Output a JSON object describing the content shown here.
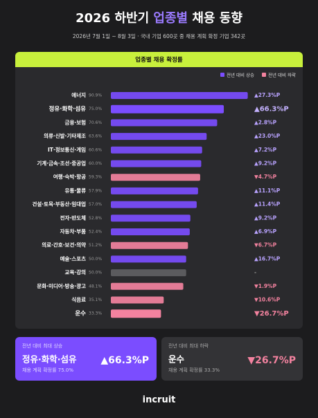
{
  "header": {
    "title": [
      "2026 하반기 ",
      "업종별",
      " 채용 동향"
    ],
    "subtitle": "2026년 7월 1일 ~ 8월 3일 · 국내 기업 600곳 중 채용 계획 확정 기업 342곳"
  },
  "chart_data": {
    "type": "bar",
    "orientation": "horizontal",
    "title": "업종별 채용 확정률",
    "legend": [
      {
        "name": "전년 대비 상승",
        "color": "#7b4dff"
      },
      {
        "name": "전년 대비 하락",
        "color": "#f3829f"
      }
    ],
    "neutral_color": "#5f5f63",
    "categories": [
      "에너지",
      "정유·화학·섬유",
      "금융·보험",
      "의류·신발·기타제조",
      "IT·정보통신·게임",
      "기계·금속·조선·중공업",
      "여행·숙박·항공",
      "유통·물류",
      "건설·토목·부동산·임대업",
      "전자·반도체",
      "자동차·부품",
      "의료·간호·보건·의약",
      "예술·스포츠",
      "교육·강의",
      "문화·미디어·방송·광고",
      "식음료",
      "운수"
    ],
    "values": [
      90.9,
      75.0,
      70.6,
      63.6,
      60.6,
      60.0,
      59.3,
      57.9,
      57.0,
      52.8,
      52.4,
      51.2,
      50.0,
      50.0,
      48.1,
      35.1,
      33.3
    ],
    "value_labels": [
      "90.9%",
      "75.0%",
      "70.6%",
      "63.6%",
      "60.6%",
      "60.0%",
      "59.3%",
      "57.9%",
      "57.0%",
      "52.8%",
      "52.4%",
      "51.2%",
      "50.0%",
      "50.0%",
      "48.1%",
      "35.1%",
      "33.3%"
    ],
    "change": {
      "values": [
        27.3,
        66.3,
        2.8,
        23.0,
        7.2,
        9.2,
        -4.7,
        11.1,
        11.4,
        9.2,
        6.9,
        -6.7,
        16.7,
        null,
        -1.9,
        -10.6,
        -26.7
      ],
      "value_labels": [
        "▲27.3%P",
        "▲66.3%P",
        "▲2.8%P",
        "▲23.0%P",
        "▲7.2%P",
        "▲9.2%P",
        "▼4.7%P",
        "▲11.1%P",
        "▲11.4%P",
        "▲9.2%P",
        "▲6.9%P",
        "▼6.7%P",
        "▲16.7%P",
        "-",
        "▼1.9%P",
        "▼10.6%P",
        "▼26.7%P"
      ]
    },
    "highlight": [
      1,
      16
    ],
    "xlim": [
      0,
      92
    ]
  },
  "cards": [
    {
      "tag": "전년 대비 최대 상승",
      "title": "정유·화학·섬유",
      "change": "▲66.3%P",
      "note": "채용 계획 확정률 75.0%"
    },
    {
      "tag": "전년 대비 최대 하락",
      "title": "운수",
      "change": "▼26.7%P",
      "note": "채용 계획 확정률 33.3%"
    }
  ],
  "logo": "incruit"
}
